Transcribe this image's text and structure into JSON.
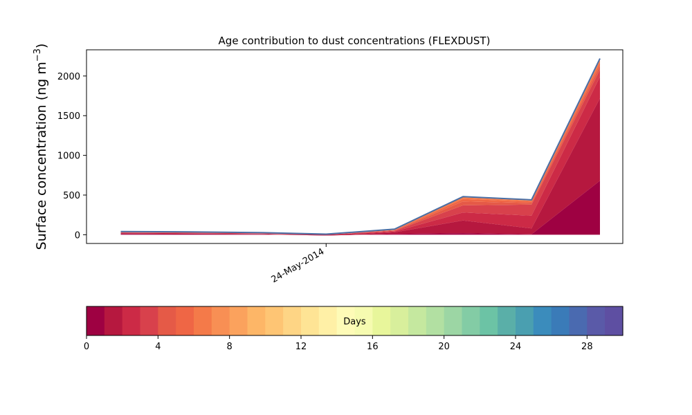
{
  "chart_data": {
    "type": "area",
    "title": "Age contribution to dust concentrations (FLEXDUST)",
    "ylabel_main": "Surface concentration (ng m",
    "ylabel_sup": "−3",
    "ylabel_close": ")",
    "xlabel": "",
    "x": [
      "2014-05-21",
      "2014-05-22",
      "2014-05-23",
      "2014-05-24",
      "2014-05-25",
      "2014-05-26",
      "2014-05-27",
      "2014-05-28"
    ],
    "x_tick_labels": [
      {
        "date": "2014-05-24",
        "label": "24-May-2014"
      }
    ],
    "x_range": [
      "2014-05-20 12:00",
      "2014-05-28 08:00"
    ],
    "y_ticks": [
      0,
      500,
      1000,
      1500,
      2000
    ],
    "ylim": [
      -110,
      2330
    ],
    "grid": false,
    "stack_cumulative": [
      [
        10,
        8,
        6,
        -10,
        10,
        20,
        5,
        680
      ],
      [
        20,
        15,
        10,
        -5,
        30,
        180,
        80,
        1720
      ],
      [
        25,
        20,
        15,
        0,
        40,
        280,
        240,
        1990
      ],
      [
        28,
        25,
        18,
        2,
        50,
        370,
        380,
        2080
      ],
      [
        30,
        28,
        20,
        4,
        55,
        420,
        400,
        2130
      ],
      [
        32,
        30,
        22,
        5,
        60,
        450,
        420,
        2170
      ],
      [
        35,
        32,
        24,
        6,
        65,
        470,
        430,
        2200
      ],
      [
        40,
        36,
        28,
        8,
        70,
        480,
        440,
        2220
      ]
    ],
    "outline_color": "#4a6fa5",
    "colorbar": {
      "label": "Days",
      "min": 0,
      "max": 30,
      "ticks": [
        0,
        4,
        8,
        12,
        16,
        20,
        24,
        28
      ],
      "colors": [
        "#9e0142",
        "#b6183f",
        "#cc2a46",
        "#d8414c",
        "#e55a47",
        "#ef6645",
        "#f47a49",
        "#f88f54",
        "#fba25d",
        "#fdb667",
        "#fec574",
        "#fed585",
        "#fee495",
        "#fff0a6",
        "#fefbb7",
        "#f6fbb0",
        "#e8f69b",
        "#d8ef9c",
        "#c5e89f",
        "#b2e0a2",
        "#9cd6a4",
        "#83cca5",
        "#6cc3a5",
        "#5aafa8",
        "#4a9fb0",
        "#3b8cbc",
        "#3a7bb8",
        "#4a6ab0",
        "#5a5aa8",
        "#5e4fa2"
      ]
    }
  }
}
